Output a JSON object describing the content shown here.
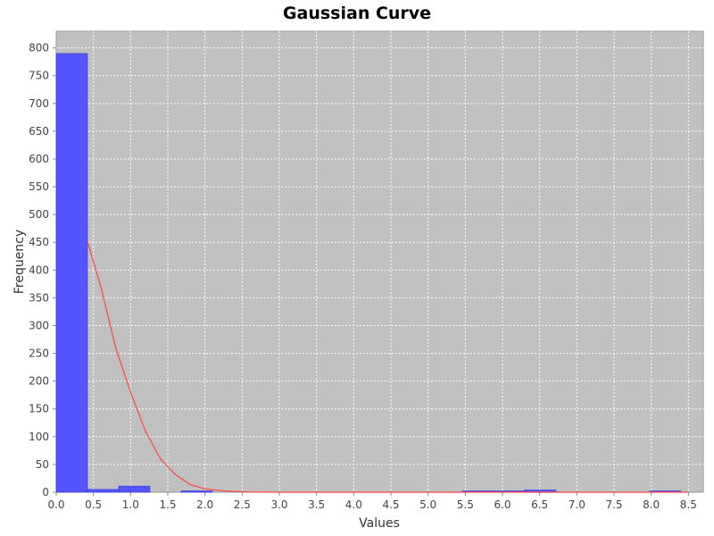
{
  "chart_data": {
    "type": "bar",
    "title": "Gaussian Curve",
    "xlabel": "Values",
    "ylabel": "Frequency",
    "xlim": [
      0,
      8.7
    ],
    "ylim": [
      0,
      830
    ],
    "grid": true,
    "x_ticks": [
      "0.0",
      "0.5",
      "1.0",
      "1.5",
      "2.0",
      "2.5",
      "3.0",
      "3.5",
      "4.0",
      "4.5",
      "5.0",
      "5.5",
      "6.0",
      "6.5",
      "7.0",
      "7.5",
      "8.0",
      "8.5"
    ],
    "y_ticks": [
      "0",
      "50",
      "100",
      "150",
      "200",
      "250",
      "300",
      "350",
      "400",
      "450",
      "500",
      "550",
      "600",
      "650",
      "700",
      "750",
      "800"
    ],
    "series": [
      {
        "type": "histogram",
        "color": "#5555ff",
        "bins": [
          {
            "x0": 0.0,
            "x1": 0.42,
            "value": 790
          },
          {
            "x0": 0.42,
            "x1": 0.84,
            "value": 5
          },
          {
            "x0": 0.84,
            "x1": 1.26,
            "value": 11
          },
          {
            "x0": 1.26,
            "x1": 1.68,
            "value": 0
          },
          {
            "x0": 1.68,
            "x1": 2.1,
            "value": 1
          },
          {
            "x0": 5.46,
            "x1": 5.88,
            "value": 2
          },
          {
            "x0": 5.88,
            "x1": 6.3,
            "value": 1
          },
          {
            "x0": 6.3,
            "x1": 6.72,
            "value": 4
          },
          {
            "x0": 7.98,
            "x1": 8.4,
            "value": 1
          }
        ]
      },
      {
        "type": "line",
        "color": "#ff4444",
        "points": [
          [
            0.42,
            452
          ],
          [
            0.6,
            370
          ],
          [
            0.8,
            260
          ],
          [
            1.0,
            180
          ],
          [
            1.2,
            110
          ],
          [
            1.4,
            60
          ],
          [
            1.6,
            32
          ],
          [
            1.8,
            14
          ],
          [
            2.0,
            6
          ],
          [
            2.3,
            2
          ],
          [
            2.6,
            0.5
          ],
          [
            3.0,
            0
          ],
          [
            8.5,
            0
          ]
        ]
      }
    ]
  }
}
